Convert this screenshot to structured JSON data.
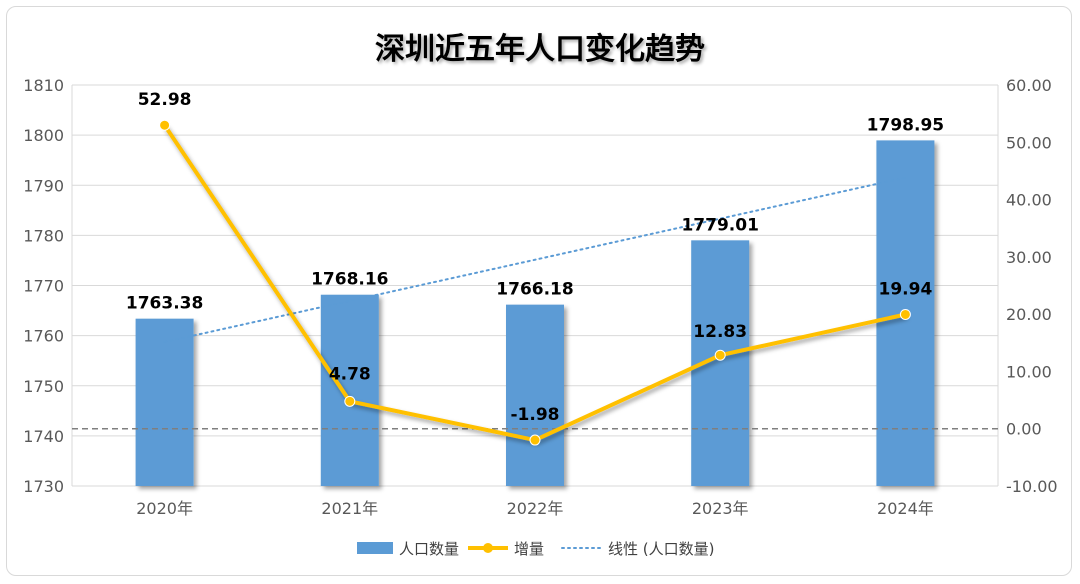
{
  "chart_data": {
    "type": "bar",
    "title": "深圳近五年人口变化趋势",
    "categories": [
      "2020年",
      "2021年",
      "2022年",
      "2023年",
      "2024年"
    ],
    "series": [
      {
        "name": "人口数量",
        "type": "bar",
        "axis": "left",
        "color": "#5b9bd5",
        "values": [
          1763.38,
          1768.16,
          1766.18,
          1779.01,
          1798.95
        ],
        "labels": [
          "1763.38",
          "1768.16",
          "1766.18",
          "1779.01",
          "1798.95"
        ]
      },
      {
        "name": "增量",
        "type": "line",
        "axis": "right",
        "color": "#ffc000",
        "values": [
          52.98,
          4.78,
          -1.98,
          12.83,
          19.94
        ],
        "labels": [
          "52.98",
          "4.78",
          "-1.98",
          "12.83",
          "19.94"
        ]
      },
      {
        "name": "线性 (人口数量)",
        "type": "trendline",
        "axis": "left",
        "color": "#5b9bd5",
        "style": "dotted"
      }
    ],
    "y_left": {
      "min": 1730,
      "max": 1810,
      "step": 10,
      "ticks": [
        "1730",
        "1740",
        "1750",
        "1760",
        "1770",
        "1780",
        "1790",
        "1800",
        "1810"
      ]
    },
    "y_right": {
      "min": -10,
      "max": 60,
      "step": 10,
      "ticks": [
        "-10.00",
        "0.00",
        "10.00",
        "20.00",
        "30.00",
        "40.00",
        "50.00",
        "60.00"
      ]
    },
    "zero_line": {
      "axis": "right",
      "value": 0,
      "style": "dashed"
    },
    "grid": true,
    "legend_position": "bottom"
  }
}
